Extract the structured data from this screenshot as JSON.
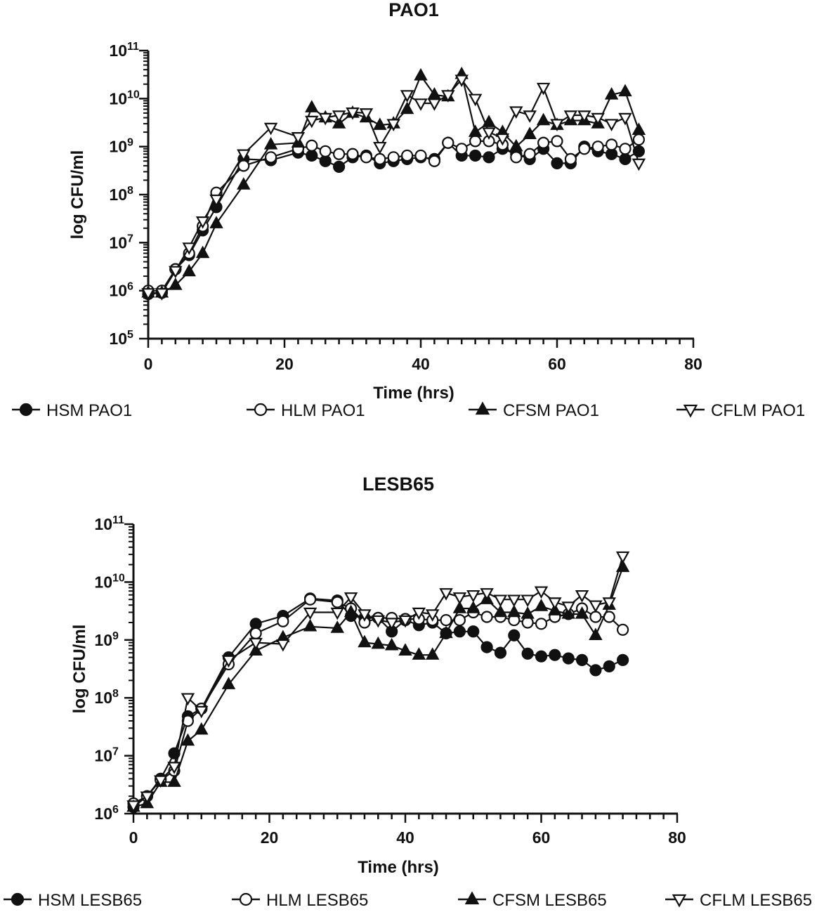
{
  "chart_data": [
    {
      "type": "line",
      "title": "PAO1",
      "xlabel": "Time (hrs)",
      "ylabel": "log CFU/ml",
      "y_scale": "log",
      "xlim": [
        0,
        80
      ],
      "ylim_exp": [
        5,
        11
      ],
      "x_ticks": [
        "0",
        "20",
        "40",
        "60",
        "80"
      ],
      "y_tick_base": "10",
      "y_tick_exponents": [
        "5",
        "6",
        "7",
        "8",
        "9",
        "10",
        "11"
      ],
      "grid": false,
      "legend_position": "bottom",
      "series": [
        {
          "name": "HSM PAO1",
          "marker": "filled-circle",
          "x": [
            0,
            2,
            4,
            6,
            8,
            10,
            14,
            18,
            22,
            24,
            26,
            28,
            30,
            32,
            34,
            36,
            38,
            40,
            42,
            44,
            46,
            48,
            50,
            52,
            54,
            56,
            58,
            60,
            62,
            64,
            66,
            68,
            70,
            72
          ],
          "y": [
            850000.0,
            900000.0,
            2800000.0,
            5500000.0,
            18000000.0,
            55000000.0,
            550000000.0,
            520000000.0,
            750000000.0,
            650000000.0,
            500000000.0,
            380000000.0,
            600000000.0,
            650000000.0,
            450000000.0,
            500000000.0,
            550000000.0,
            600000000.0,
            550000000.0,
            1200000000.0,
            650000000.0,
            650000000.0,
            600000000.0,
            900000000.0,
            700000000.0,
            550000000.0,
            900000000.0,
            450000000.0,
            450000000.0,
            1000000000.0,
            800000000.0,
            700000000.0,
            550000000.0,
            800000000.0
          ]
        },
        {
          "name": "HLM PAO1",
          "marker": "open-circle",
          "x": [
            0,
            2,
            4,
            6,
            8,
            10,
            14,
            18,
            22,
            24,
            26,
            28,
            30,
            32,
            34,
            36,
            38,
            40,
            42,
            44,
            46,
            48,
            50,
            52,
            54,
            56,
            58,
            60,
            62,
            64,
            66,
            68,
            70,
            72
          ],
          "y": [
            1000000.0,
            1000000.0,
            2800000.0,
            6000000.0,
            22000000.0,
            110000000.0,
            400000000.0,
            600000000.0,
            900000000.0,
            1050000000.0,
            800000000.0,
            700000000.0,
            700000000.0,
            600000000.0,
            550000000.0,
            600000000.0,
            650000000.0,
            650000000.0,
            500000000.0,
            1200000000.0,
            900000000.0,
            1300000000.0,
            1300000000.0,
            1100000000.0,
            600000000.0,
            700000000.0,
            1200000000.0,
            1300000000.0,
            550000000.0,
            900000000.0,
            1000000000.0,
            1100000000.0,
            900000000.0,
            1400000000.0
          ]
        },
        {
          "name": "CFSM PAO1",
          "marker": "filled-triangle-up",
          "x": [
            0,
            2,
            4,
            6,
            8,
            10,
            14,
            18,
            22,
            24,
            26,
            28,
            30,
            32,
            34,
            36,
            38,
            40,
            42,
            44,
            46,
            48,
            50,
            52,
            54,
            56,
            58,
            60,
            62,
            64,
            66,
            68,
            70,
            72
          ],
          "y": [
            900000.0,
            900000.0,
            1300000.0,
            2500000.0,
            6000000.0,
            25000000.0,
            160000000.0,
            1100000000.0,
            1200000000.0,
            6500000000.0,
            4000000000.0,
            3000000000.0,
            5000000000.0,
            4000000000.0,
            2800000000.0,
            3000000000.0,
            6000000000.0,
            30000000000.0,
            12000000000.0,
            11000000000.0,
            32000000000.0,
            2000000000.0,
            3200000000.0,
            2000000000.0,
            1000000000.0,
            1800000000.0,
            3500000000.0,
            2800000000.0,
            3500000000.0,
            3500000000.0,
            3000000000.0,
            12000000000.0,
            14000000000.0,
            2200000000.0
          ]
        },
        {
          "name": "CFLM PAO1",
          "marker": "open-triangle-down",
          "x": [
            0,
            2,
            4,
            6,
            8,
            10,
            14,
            18,
            22,
            24,
            26,
            28,
            30,
            32,
            34,
            36,
            38,
            40,
            42,
            44,
            46,
            48,
            50,
            52,
            54,
            56,
            58,
            60,
            62,
            64,
            66,
            68,
            70,
            72
          ],
          "y": [
            900000.0,
            900000.0,
            2600000.0,
            8000000.0,
            28000000.0,
            80000000.0,
            700000000.0,
            2500000000.0,
            1600000000.0,
            3500000000.0,
            4000000000.0,
            4500000000.0,
            5200000000.0,
            5000000000.0,
            1000000000.0,
            3000000000.0,
            12000000000.0,
            8000000000.0,
            8000000000.0,
            12000000000.0,
            25000000000.0,
            10000000000.0,
            2000000000.0,
            1500000000.0,
            5500000000.0,
            4500000000.0,
            17000000000.0,
            3000000000.0,
            4500000000.0,
            4500000000.0,
            4000000000.0,
            3000000000.0,
            4000000000.0,
            450000000.0
          ]
        }
      ]
    },
    {
      "type": "line",
      "title": "LESB65",
      "xlabel": "Time (hrs)",
      "ylabel": "log CFU/ml",
      "y_scale": "log",
      "xlim": [
        0,
        80
      ],
      "ylim_exp": [
        6,
        11
      ],
      "x_ticks": [
        "0",
        "20",
        "40",
        "60",
        "80"
      ],
      "y_tick_base": "10",
      "y_tick_exponents": [
        "6",
        "7",
        "8",
        "9",
        "10",
        "11"
      ],
      "grid": false,
      "legend_position": "bottom",
      "series": [
        {
          "name": "HSM LESB65",
          "marker": "filled-circle",
          "x": [
            0,
            2,
            4,
            6,
            8,
            10,
            14,
            18,
            22,
            26,
            30,
            32,
            34,
            36,
            38,
            40,
            42,
            44,
            46,
            48,
            50,
            52,
            54,
            56,
            58,
            60,
            62,
            64,
            66,
            68,
            70,
            72
          ],
          "y": [
            1300000.0,
            2000000.0,
            4000000.0,
            11000000.0,
            48000000.0,
            65000000.0,
            500000000.0,
            1900000000.0,
            2600000000.0,
            5200000000.0,
            4800000000.0,
            2600000000.0,
            2400000000.0,
            2400000000.0,
            1400000000.0,
            2200000000.0,
            1800000000.0,
            2000000000.0,
            1300000000.0,
            1400000000.0,
            1400000000.0,
            750000000.0,
            600000000.0,
            1200000000.0,
            580000000.0,
            520000000.0,
            550000000.0,
            480000000.0,
            450000000.0,
            300000000.0,
            350000000.0,
            450000000.0
          ]
        },
        {
          "name": "HLM LESB65",
          "marker": "open-circle",
          "x": [
            0,
            2,
            4,
            6,
            8,
            10,
            14,
            18,
            22,
            26,
            30,
            32,
            34,
            36,
            38,
            40,
            42,
            44,
            46,
            48,
            50,
            52,
            54,
            56,
            58,
            60,
            62,
            64,
            66,
            68,
            70,
            72
          ],
          "y": [
            1500000.0,
            2000000.0,
            3800000.0,
            5500000.0,
            40000000.0,
            65000000.0,
            380000000.0,
            1300000000.0,
            2100000000.0,
            5000000000.0,
            4500000000.0,
            3500000000.0,
            2000000000.0,
            2400000000.0,
            2400000000.0,
            2300000000.0,
            2300000000.0,
            2200000000.0,
            2200000000.0,
            2200000000.0,
            3000000000.0,
            2500000000.0,
            2500000000.0,
            2200000000.0,
            2000000000.0,
            1900000000.0,
            2500000000.0,
            2800000000.0,
            3500000000.0,
            2500000000.0,
            2500000000.0,
            1500000000.0
          ]
        },
        {
          "name": "CFSM LESB65",
          "marker": "filled-triangle-up",
          "x": [
            0,
            2,
            4,
            6,
            8,
            10,
            14,
            18,
            22,
            26,
            30,
            32,
            34,
            36,
            38,
            40,
            42,
            44,
            46,
            48,
            50,
            52,
            54,
            56,
            58,
            60,
            62,
            64,
            66,
            68,
            70,
            72
          ],
          "y": [
            1300000.0,
            1500000.0,
            3500000.0,
            3500000.0,
            18000000.0,
            28000000.0,
            170000000.0,
            650000000.0,
            1100000000.0,
            1700000000.0,
            1600000000.0,
            3000000000.0,
            900000000.0,
            850000000.0,
            800000000.0,
            650000000.0,
            550000000.0,
            550000000.0,
            1300000000.0,
            3500000000.0,
            3500000000.0,
            5000000000.0,
            3000000000.0,
            3000000000.0,
            2800000000.0,
            3800000000.0,
            3200000000.0,
            2800000000.0,
            2800000000.0,
            1200000000.0,
            4000000000.0,
            18000000000.0
          ]
        },
        {
          "name": "CFLM LESB65",
          "marker": "open-triangle-down",
          "x": [
            0,
            2,
            4,
            6,
            8,
            10,
            14,
            18,
            22,
            26,
            30,
            32,
            34,
            36,
            38,
            40,
            42,
            44,
            46,
            48,
            50,
            52,
            54,
            56,
            58,
            60,
            62,
            64,
            66,
            68,
            70,
            72
          ],
          "y": [
            1400000.0,
            2000000.0,
            3800000.0,
            6500000.0,
            100000000.0,
            60000000.0,
            450000000.0,
            900000000.0,
            850000000.0,
            3000000000.0,
            3000000000.0,
            5500000000.0,
            2800000000.0,
            2200000000.0,
            2000000000.0,
            2200000000.0,
            3000000000.0,
            2800000000.0,
            6500000000.0,
            5500000000.0,
            6000000000.0,
            6500000000.0,
            5000000000.0,
            5000000000.0,
            5000000000.0,
            7000000000.0,
            4500000000.0,
            3800000000.0,
            6000000000.0,
            4000000000.0,
            4500000000.0,
            28000000000.0
          ]
        }
      ]
    }
  ]
}
